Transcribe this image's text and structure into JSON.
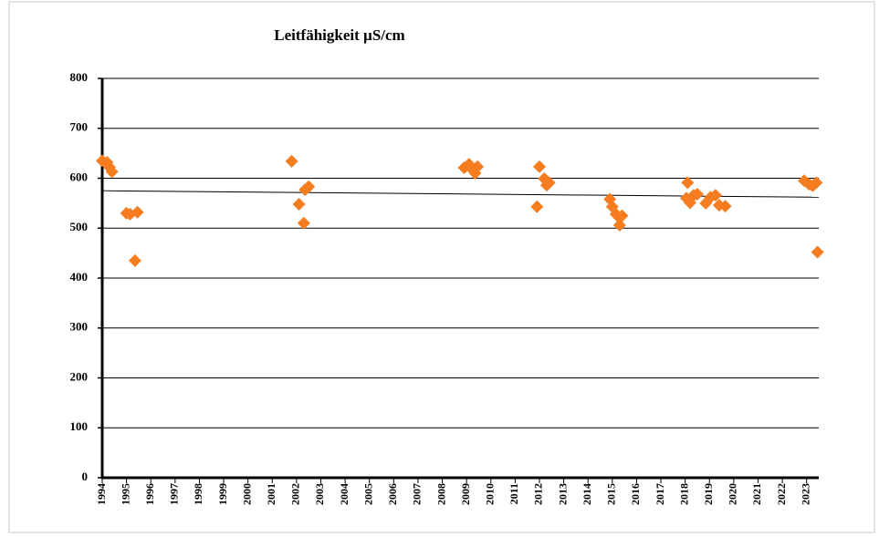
{
  "chart_data": {
    "type": "scatter",
    "title": "Leitfähigkeit µS/cm",
    "series": [
      {
        "color": "#f57c1f",
        "x": [
          1994.0,
          1994.2,
          1994.3,
          1994.4,
          1995.0,
          1995.15,
          1995.45,
          1995.35,
          2001.8,
          2002.1,
          2002.3,
          2002.35,
          2002.5,
          2008.9,
          2009.1,
          2009.25,
          2009.35,
          2009.45,
          2011.9,
          2012.0,
          2012.2,
          2012.3,
          2012.4,
          2014.9,
          2015.0,
          2015.15,
          2015.25,
          2015.4,
          2015.3,
          2018.1,
          2018.05,
          2018.2,
          2018.35,
          2018.5,
          2018.85,
          2019.05,
          2019.25,
          2019.4,
          2019.65,
          2022.9,
          2023.1,
          2023.25,
          2023.4,
          2023.45
        ],
        "values": [
          635,
          632,
          622,
          613,
          530,
          528,
          532,
          435,
          634,
          548,
          510,
          577,
          583,
          621,
          628,
          617,
          610,
          623,
          543,
          623,
          599,
          586,
          591,
          558,
          543,
          528,
          523,
          525,
          506,
          591,
          560,
          551,
          566,
          568,
          550,
          562,
          566,
          546,
          544,
          595,
          588,
          585,
          591,
          452
        ]
      }
    ],
    "trendline": {
      "x": [
        1994,
        2023.5
      ],
      "values": [
        575,
        562
      ]
    },
    "xlim": [
      1994,
      2023.5
    ],
    "xticks": [
      1994,
      1995,
      1996,
      1997,
      1998,
      1999,
      2000,
      2001,
      2002,
      2003,
      2004,
      2005,
      2006,
      2007,
      2008,
      2009,
      2010,
      2011,
      2012,
      2013,
      2014,
      2015,
      2016,
      2017,
      2018,
      2019,
      2020,
      2021,
      2022,
      2023
    ],
    "ylim": [
      0,
      800
    ],
    "yticks": [
      0,
      100,
      200,
      300,
      400,
      500,
      600,
      700,
      800
    ],
    "grid": true
  }
}
